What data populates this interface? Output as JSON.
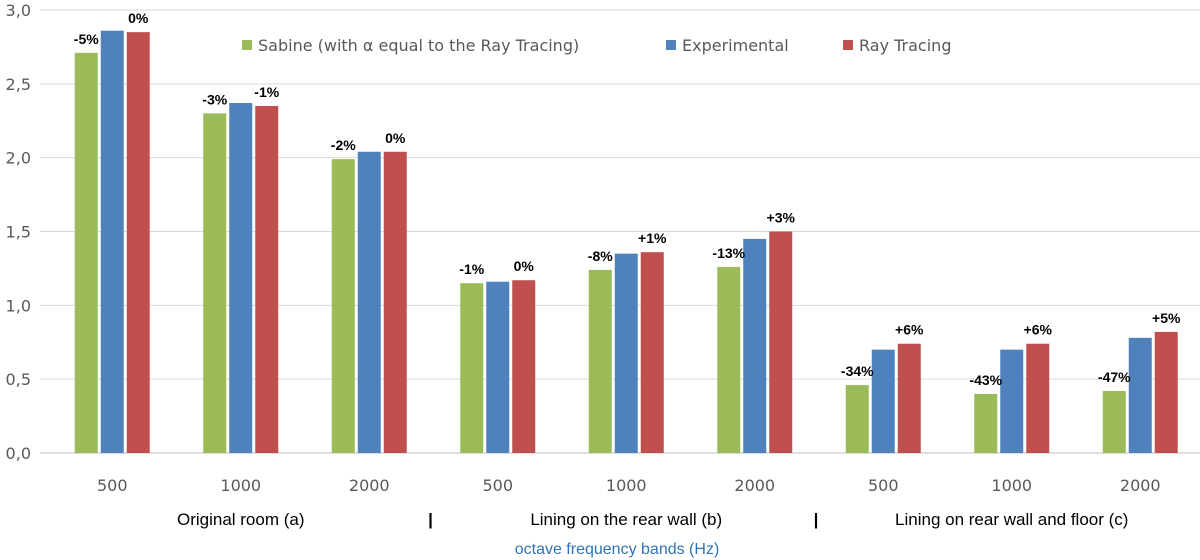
{
  "chart_data": {
    "type": "bar",
    "title": "",
    "xlabel": "octave frequency bands (Hz)",
    "ylabel": "",
    "ylim": [
      0,
      3
    ],
    "yticks": [
      "0,0",
      "0,5",
      "1,0",
      "1,5",
      "2,0",
      "2,5",
      "3,0"
    ],
    "ytick_values": [
      0,
      0.5,
      1,
      1.5,
      2,
      2.5,
      3
    ],
    "grid": true,
    "legend_position": "top-center",
    "categories": [
      "500",
      "1000",
      "2000",
      "500",
      "1000",
      "2000",
      "500",
      "1000",
      "2000"
    ],
    "groups": [
      {
        "label": "Original room (a)",
        "span": [
          0,
          2
        ]
      },
      {
        "label": "Lining on the rear wall (b)",
        "span": [
          3,
          5
        ]
      },
      {
        "label": "Lining on rear wall and floor (c)",
        "span": [
          6,
          8
        ]
      }
    ],
    "separator": "|",
    "series": [
      {
        "name": "Sabine (with α equal to the Ray Tracing)",
        "color": "#9bbb59",
        "values": [
          2.71,
          2.3,
          1.99,
          1.15,
          1.24,
          1.26,
          0.46,
          0.4,
          0.42
        ],
        "labels": [
          "-5%",
          "-3%",
          "-2%",
          "-1%",
          "-8%",
          "-13%",
          "-34%",
          "-43%",
          "-47%"
        ]
      },
      {
        "name": "Experimental",
        "color": "#4f81bd",
        "values": [
          2.86,
          2.37,
          2.04,
          1.16,
          1.35,
          1.45,
          0.7,
          0.7,
          0.78
        ],
        "labels": [
          "",
          "",
          "",
          "",
          "",
          "",
          "",
          "",
          ""
        ]
      },
      {
        "name": "Ray Tracing",
        "color": "#c0504d",
        "values": [
          2.85,
          2.35,
          2.04,
          1.17,
          1.36,
          1.5,
          0.74,
          0.74,
          0.82
        ],
        "labels": [
          "0%",
          "-1%",
          "0%",
          "0%",
          "+1%",
          "+3%",
          "+6%",
          "+6%",
          "+5%"
        ]
      }
    ]
  }
}
